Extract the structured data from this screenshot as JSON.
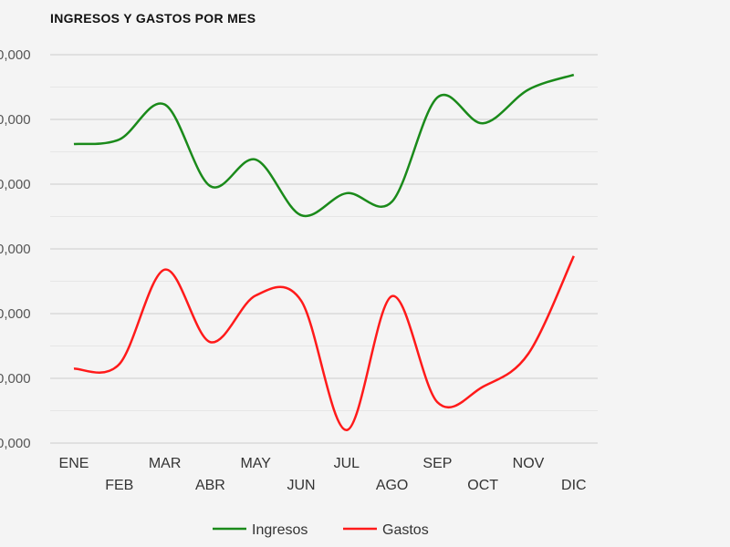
{
  "chart_data": {
    "type": "line",
    "title": "INGRESOS Y GASTOS POR MES",
    "xlabel": "",
    "ylabel": "",
    "categories": [
      "ENE",
      "FEB",
      "MAR",
      "ABR",
      "MAY",
      "JUN",
      "JUL",
      "AGO",
      "SEP",
      "OCT",
      "NOV",
      "DIC"
    ],
    "yticks": [
      0,
      10,
      20,
      30,
      40,
      50,
      60
    ],
    "ytick_labels": [
      "0,000",
      "0,000",
      "0,000",
      "0,000",
      "0,000",
      "0,000",
      "0,000"
    ],
    "ylim": [
      0,
      60
    ],
    "grid": true,
    "legend_position": "bottom",
    "series": [
      {
        "name": "Ingresos",
        "color": "#1a8a1a",
        "values": [
          46.2,
          46.9,
          52.3,
          39.7,
          43.8,
          35.2,
          38.6,
          37.3,
          53.4,
          49.4,
          54.6,
          56.9
        ]
      },
      {
        "name": "Gastos",
        "color": "#ff1a1a",
        "values": [
          11.5,
          12.2,
          26.8,
          15.6,
          22.8,
          22.0,
          2.0,
          22.7,
          6.3,
          8.7,
          13.8,
          28.9
        ]
      }
    ]
  }
}
